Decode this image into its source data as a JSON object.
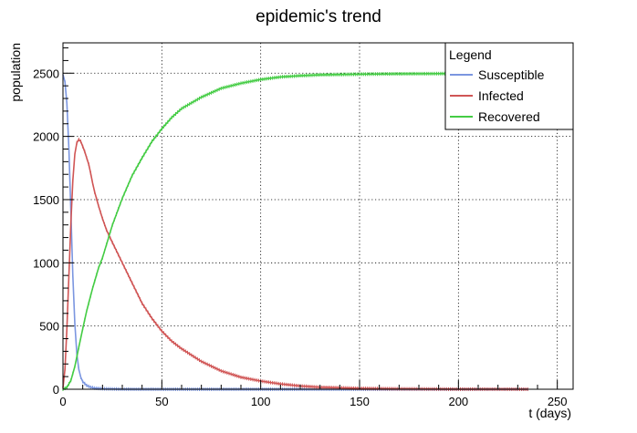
{
  "chart_data": {
    "type": "line",
    "title": "epidemic's trend",
    "xlabel": "t (days)",
    "ylabel": "population",
    "xlim": [
      0,
      258
    ],
    "ylim": [
      0,
      2740
    ],
    "xticks": [
      0,
      50,
      100,
      150,
      200,
      250
    ],
    "xtick_labels": [
      "0",
      "50",
      "100",
      "150",
      "200",
      "250"
    ],
    "yticks": [
      0,
      500,
      1000,
      1500,
      2000,
      2500
    ],
    "ytick_labels": [
      "0",
      "500",
      "1000",
      "1500",
      "2000",
      "2500"
    ],
    "grid": true,
    "legend": {
      "title": "Legend",
      "position": "top-right"
    },
    "series": [
      {
        "name": "Susceptible",
        "color": "#7b96e0",
        "x": [
          0,
          1,
          2,
          3,
          4,
          5,
          6,
          7,
          8,
          9,
          10,
          12,
          14,
          16,
          20,
          25,
          30,
          40,
          60,
          100,
          150,
          200,
          235
        ],
        "values": [
          2490,
          2430,
          2260,
          1900,
          1400,
          900,
          520,
          280,
          160,
          95,
          60,
          30,
          16,
          9,
          4,
          2,
          1,
          0,
          0,
          0,
          0,
          0,
          0
        ]
      },
      {
        "name": "Infected",
        "color": "#d05555",
        "x": [
          0,
          1,
          2,
          3,
          4,
          5,
          6,
          7,
          8,
          9,
          10,
          11,
          12,
          13,
          14,
          15,
          16,
          18,
          20,
          22,
          25,
          30,
          35,
          40,
          45,
          50,
          55,
          60,
          70,
          80,
          90,
          100,
          110,
          120,
          130,
          150,
          170,
          200,
          235
        ],
        "values": [
          10,
          160,
          480,
          900,
          1320,
          1650,
          1860,
          1950,
          1975,
          1960,
          1920,
          1880,
          1830,
          1780,
          1710,
          1630,
          1560,
          1450,
          1350,
          1260,
          1160,
          1000,
          840,
          680,
          560,
          460,
          380,
          320,
          220,
          145,
          95,
          65,
          42,
          26,
          16,
          7,
          3,
          1,
          0
        ]
      },
      {
        "name": "Recovered",
        "color": "#44cc44",
        "x": [
          0,
          2,
          4,
          6,
          8,
          10,
          12,
          15,
          18,
          20,
          25,
          30,
          35,
          40,
          45,
          50,
          55,
          60,
          70,
          80,
          90,
          100,
          110,
          120,
          130,
          150,
          170,
          200,
          235
        ],
        "values": [
          0,
          15,
          70,
          180,
          330,
          480,
          620,
          800,
          960,
          1040,
          1300,
          1510,
          1690,
          1830,
          1960,
          2060,
          2150,
          2220,
          2310,
          2380,
          2420,
          2450,
          2470,
          2480,
          2487,
          2492,
          2495,
          2497,
          2497
        ]
      }
    ]
  }
}
